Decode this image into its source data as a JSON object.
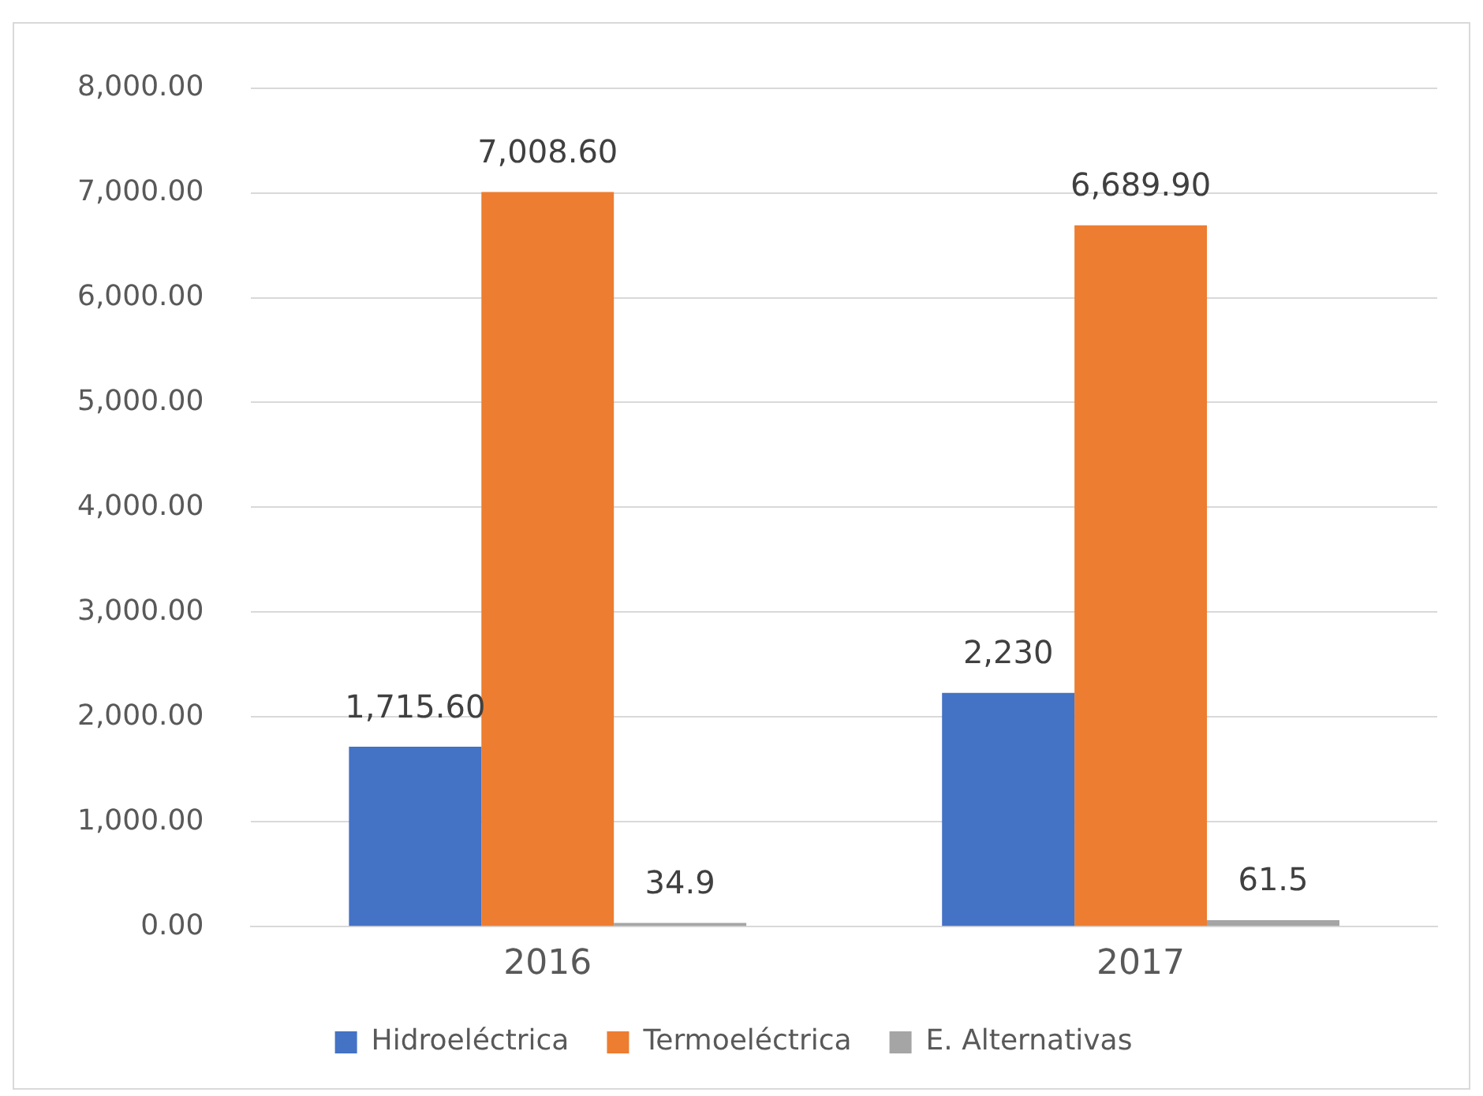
{
  "chart_data": {
    "type": "bar",
    "categories": [
      "2016",
      "2017"
    ],
    "series": [
      {
        "name": "Hidroeléctrica",
        "color": "#4472c4",
        "values": [
          1715.6,
          2230
        ],
        "value_labels": [
          "1,715.60",
          "2,230"
        ]
      },
      {
        "name": "Termoeléctrica",
        "color": "#ed7d31",
        "values": [
          7008.6,
          6689.9
        ],
        "value_labels": [
          "7,008.60",
          "6,689.90"
        ]
      },
      {
        "name": "E. Alternativas",
        "color": "#a5a5a5",
        "values": [
          34.9,
          61.5
        ],
        "value_labels": [
          "34.9",
          "61.5"
        ]
      }
    ],
    "ylim": [
      0,
      8000
    ],
    "yticks": [
      {
        "value": 0,
        "label": "0.00"
      },
      {
        "value": 1000,
        "label": "1,000.00"
      },
      {
        "value": 2000,
        "label": "2,000.00"
      },
      {
        "value": 3000,
        "label": "3,000.00"
      },
      {
        "value": 4000,
        "label": "4,000.00"
      },
      {
        "value": 5000,
        "label": "5,000.00"
      },
      {
        "value": 6000,
        "label": "6,000.00"
      },
      {
        "value": 7000,
        "label": "7,000.00"
      },
      {
        "value": 8000,
        "label": "8,000.00"
      }
    ],
    "grid": "y",
    "legend": "bottom"
  }
}
